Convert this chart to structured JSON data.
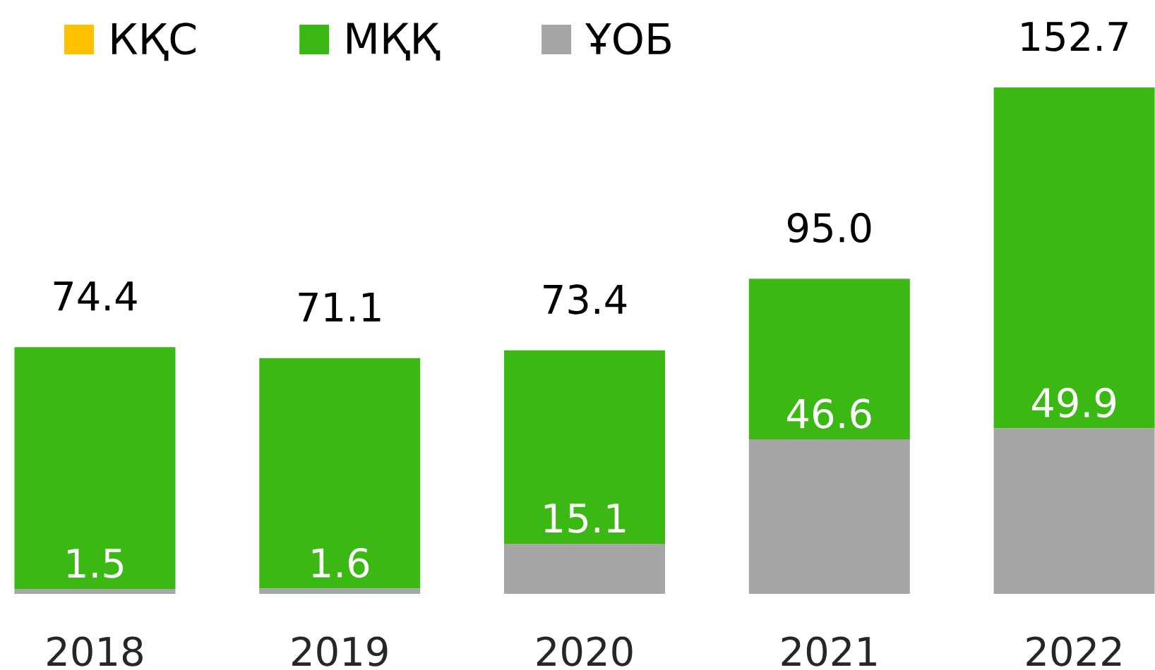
{
  "chart_data": {
    "type": "bar",
    "stacked": true,
    "categories": [
      "2018",
      "2019",
      "2020",
      "2021",
      "2022"
    ],
    "series": [
      {
        "name": "ҰОБ",
        "color": "#a6a6a6",
        "values": [
          1.5,
          1.6,
          15.1,
          46.6,
          49.9
        ],
        "value_labels": [
          "1.5",
          "1.6",
          "15.1",
          "46.6",
          "49.9"
        ]
      },
      {
        "name": "МҚҚ",
        "color": "#3cb815",
        "values": [
          72.9,
          69.5,
          58.3,
          48.4,
          102.8
        ]
      },
      {
        "name": "КҚС",
        "color": "#ffc000",
        "values": [
          null,
          null,
          null,
          null,
          null
        ]
      }
    ],
    "totals": [
      "74.4",
      "71.1",
      "73.4",
      "95.0",
      "152.7"
    ],
    "legend": "top left"
  }
}
